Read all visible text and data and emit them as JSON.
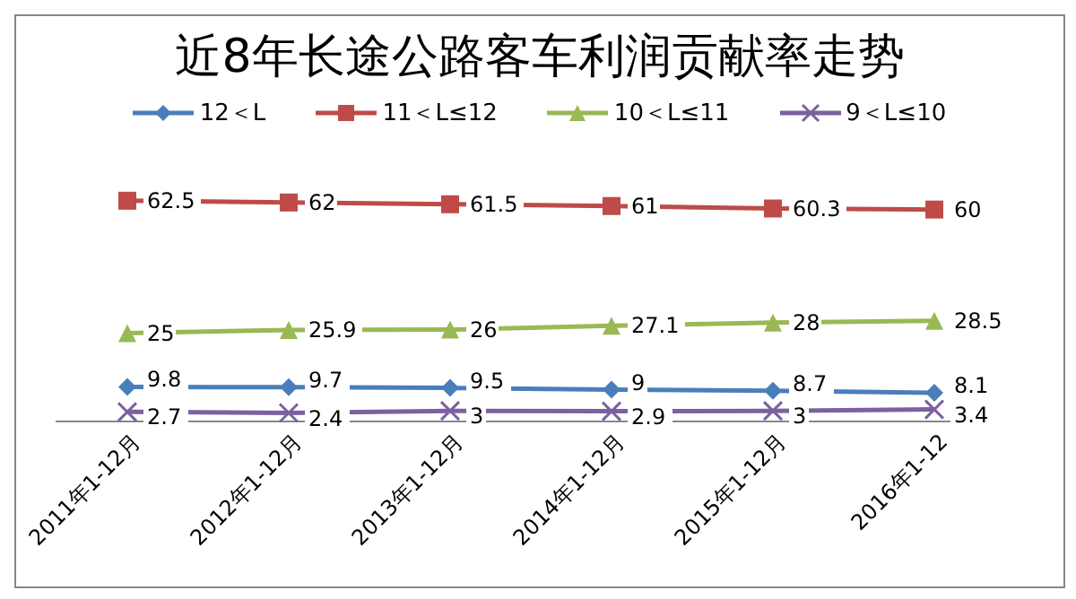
{
  "chart_data": {
    "type": "line",
    "title": "近8年长途公路客车利润贡献率走势",
    "categories": [
      "2011年1-12月",
      "2012年1-12月",
      "2013年1-12月",
      "2014年1-12月",
      "2015年1-12月",
      "2016年1-12"
    ],
    "series": [
      {
        "name": "12＜L",
        "color": "#4a7ebb",
        "marker": "diamond",
        "values": [
          9.8,
          9.7,
          9.5,
          9,
          8.7,
          8.1
        ]
      },
      {
        "name": "11＜L≤12",
        "color": "#be4b48",
        "marker": "square",
        "values": [
          62.5,
          62,
          61.5,
          61,
          60.3,
          60
        ]
      },
      {
        "name": "10＜L≤11",
        "color": "#98b954",
        "marker": "triangle",
        "values": [
          25,
          25.9,
          26,
          27.1,
          28,
          28.5
        ]
      },
      {
        "name": "9＜L≤10",
        "color": "#7d60a0",
        "marker": "cross",
        "values": [
          2.7,
          2.4,
          3,
          2.9,
          3,
          3.4
        ]
      }
    ],
    "data_labels": true,
    "legend": "top",
    "grid": false
  }
}
